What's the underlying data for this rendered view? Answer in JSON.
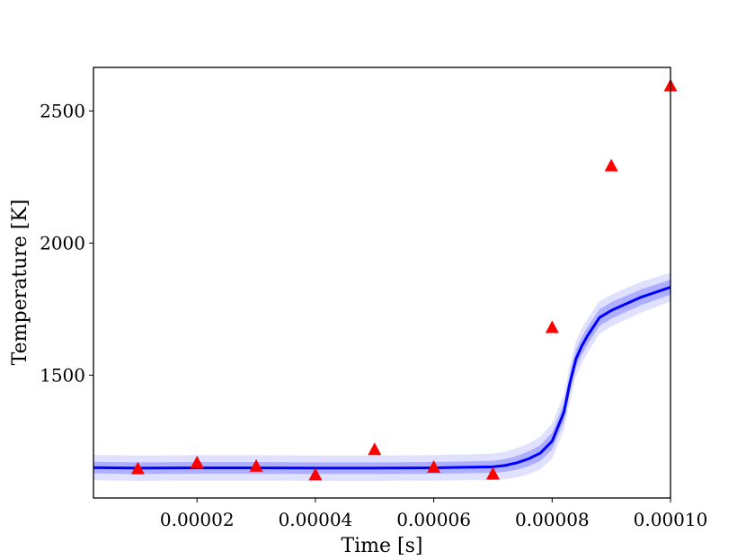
{
  "chart_data": {
    "type": "line",
    "title": "",
    "xlabel": "Time [s]",
    "ylabel": "Temperature [K]",
    "xlim": [
      2.5e-06,
      0.0001
    ],
    "ylim": [
      1035,
      2665
    ],
    "grid": false,
    "legend": "none",
    "x_ticks": [
      {
        "value": 2e-05,
        "label": "0.00002"
      },
      {
        "value": 4e-05,
        "label": "0.00004"
      },
      {
        "value": 6e-05,
        "label": "0.00006"
      },
      {
        "value": 8e-05,
        "label": "0.00008"
      },
      {
        "value": 0.0001,
        "label": "0.00010"
      }
    ],
    "y_ticks": [
      {
        "value": 1500,
        "label": "1500"
      },
      {
        "value": 2000,
        "label": "2000"
      },
      {
        "value": 2500,
        "label": "2500"
      }
    ],
    "series": [
      {
        "kind": "line_with_bands",
        "color": "#0000ff",
        "x": [
          2.5e-06,
          1e-05,
          2e-05,
          3e-05,
          4e-05,
          5e-05,
          6e-05,
          7e-05,
          7.2e-05,
          7.4e-05,
          7.6e-05,
          7.8e-05,
          8e-05,
          8.2e-05,
          8.3e-05,
          8.4e-05,
          8.5e-05,
          8.6e-05,
          8.8e-05,
          9e-05,
          9.5e-05,
          0.0001
        ],
        "y": [
          1150,
          1148,
          1149,
          1149,
          1148,
          1148,
          1149,
          1153,
          1158,
          1168,
          1183,
          1205,
          1250,
          1360,
          1470,
          1560,
          1610,
          1650,
          1718,
          1745,
          1795,
          1833
        ],
        "band_inner": [
          22,
          22,
          22,
          22,
          22,
          22,
          22,
          23,
          24,
          26,
          28,
          30,
          32,
          34,
          34,
          34,
          34,
          33,
          32,
          31,
          30,
          28
        ],
        "band_outer": [
          48,
          48,
          48,
          48,
          48,
          48,
          48,
          50,
          52,
          55,
          58,
          62,
          66,
          68,
          68,
          67,
          66,
          64,
          62,
          60,
          58,
          55
        ]
      },
      {
        "kind": "scatter",
        "marker": "triangle",
        "color": "#ff0000",
        "x": [
          1e-05,
          2e-05,
          3e-05,
          4e-05,
          5e-05,
          6e-05,
          7e-05,
          8e-05,
          9e-05,
          0.0001
        ],
        "y": [
          1145,
          1168,
          1155,
          1122,
          1218,
          1151,
          1125,
          1680,
          2292,
          2595
        ]
      }
    ]
  }
}
